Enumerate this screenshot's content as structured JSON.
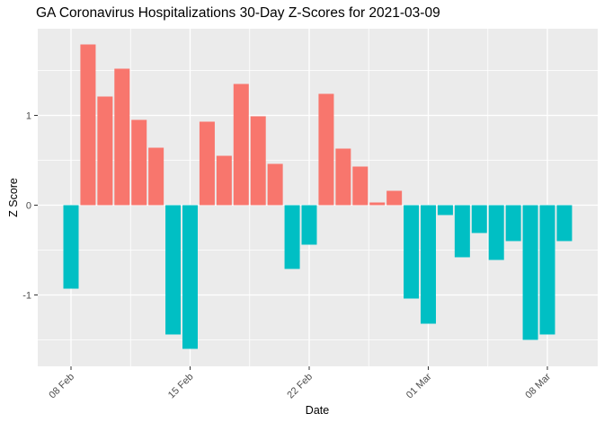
{
  "chart_data": {
    "type": "bar",
    "title": "GA Coronavirus Hospitalizations 30-Day Z-Scores for 2021-03-09",
    "xlabel": "Date",
    "ylabel": "Z Score",
    "categories": [
      "2021-02-08",
      "2021-02-09",
      "2021-02-10",
      "2021-02-11",
      "2021-02-12",
      "2021-02-13",
      "2021-02-14",
      "2021-02-15",
      "2021-02-16",
      "2021-02-17",
      "2021-02-18",
      "2021-02-19",
      "2021-02-20",
      "2021-02-21",
      "2021-02-22",
      "2021-02-23",
      "2021-02-24",
      "2021-02-25",
      "2021-02-26",
      "2021-02-27",
      "2021-02-28",
      "2021-03-01",
      "2021-03-02",
      "2021-03-03",
      "2021-03-04",
      "2021-03-05",
      "2021-03-06",
      "2021-03-07",
      "2021-03-08",
      "2021-03-09"
    ],
    "values": [
      -0.93,
      1.79,
      1.21,
      1.52,
      0.95,
      0.64,
      -1.44,
      -1.6,
      0.93,
      0.55,
      1.35,
      0.99,
      0.46,
      -0.71,
      -0.44,
      1.24,
      0.63,
      0.43,
      0.03,
      0.16,
      -1.04,
      -1.32,
      -0.11,
      -0.58,
      -0.31,
      -0.61,
      -0.4,
      -1.5,
      -1.44,
      -0.4
    ],
    "coloring_rule": "positive values salmon, negative values teal",
    "x_ticks": [
      {
        "day_index": 0,
        "label": "08 Feb"
      },
      {
        "day_index": 7,
        "label": "15 Feb"
      },
      {
        "day_index": 14,
        "label": "22 Feb"
      },
      {
        "day_index": 21,
        "label": "01 Mar"
      },
      {
        "day_index": 28,
        "label": "08 Mar"
      }
    ],
    "y_ticks": [
      {
        "value": -1,
        "label": "-1"
      },
      {
        "value": 0,
        "label": "0"
      },
      {
        "value": 1,
        "label": "1"
      }
    ],
    "y_minor_ticks": [
      -1.5,
      -0.5,
      0.5,
      1.5
    ],
    "ylim": [
      -1.8,
      1.97
    ],
    "grid": true,
    "legend": "none",
    "colors": {
      "positive_bar": "#F8766D",
      "negative_bar": "#00BFC4",
      "panel_background": "#EBEBEB",
      "gridline": "#FFFFFF",
      "axis_text": "#4D4D4D",
      "axis_title": "#000000",
      "title_text": "#000000",
      "tick_mark": "#333333"
    }
  }
}
